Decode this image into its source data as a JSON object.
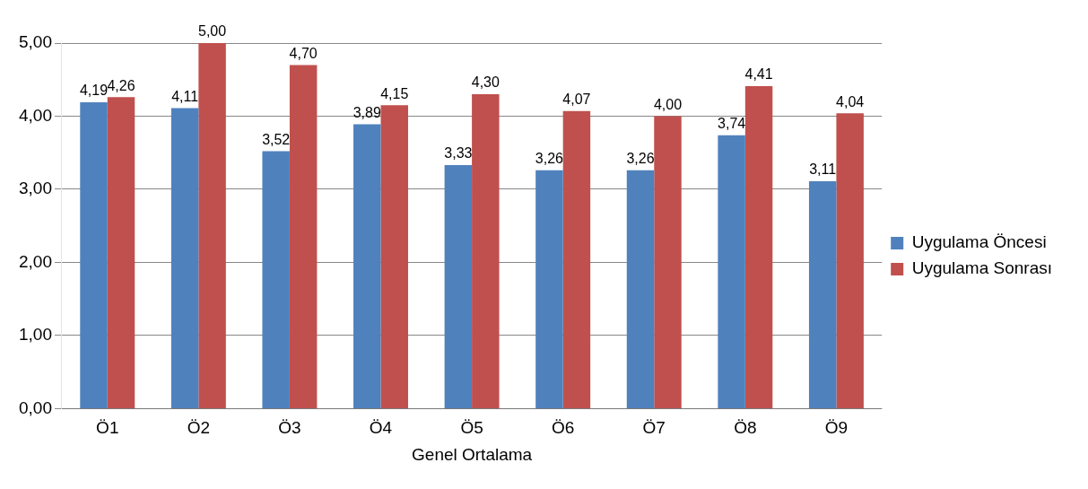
{
  "chart_data": {
    "type": "bar",
    "xlabel": "Genel Ortalama",
    "categories": [
      "Ö1",
      "Ö2",
      "Ö3",
      "Ö4",
      "Ö5",
      "Ö6",
      "Ö7",
      "Ö8",
      "Ö9"
    ],
    "series": [
      {
        "name": "Uygulama Öncesi",
        "color": "#4f81bd",
        "values": [
          4.19,
          4.11,
          3.52,
          3.89,
          3.33,
          3.26,
          3.26,
          3.74,
          3.11
        ],
        "value_labels": [
          "4,19",
          "4,11",
          "3,52",
          "3,89",
          "3,33",
          "3,26",
          "3,26",
          "3,74",
          "3,11"
        ]
      },
      {
        "name": "Uygulama Sonrası",
        "color": "#c0504d",
        "values": [
          4.26,
          5.0,
          4.7,
          4.15,
          4.3,
          4.07,
          4.0,
          4.41,
          4.04
        ],
        "value_labels": [
          "4,26",
          "5,00",
          "4,70",
          "4,15",
          "4,30",
          "4,07",
          "4,00",
          "4,41",
          "4,04"
        ]
      }
    ],
    "ylim": [
      0,
      5
    ],
    "yticks": [
      {
        "value": 0,
        "label": "0,00"
      },
      {
        "value": 1,
        "label": "1,00"
      },
      {
        "value": 2,
        "label": "2,00"
      },
      {
        "value": 3,
        "label": "3,00"
      },
      {
        "value": 4,
        "label": "4,00"
      },
      {
        "value": 5,
        "label": "5,00"
      }
    ],
    "grid": "y",
    "legend": "right"
  }
}
